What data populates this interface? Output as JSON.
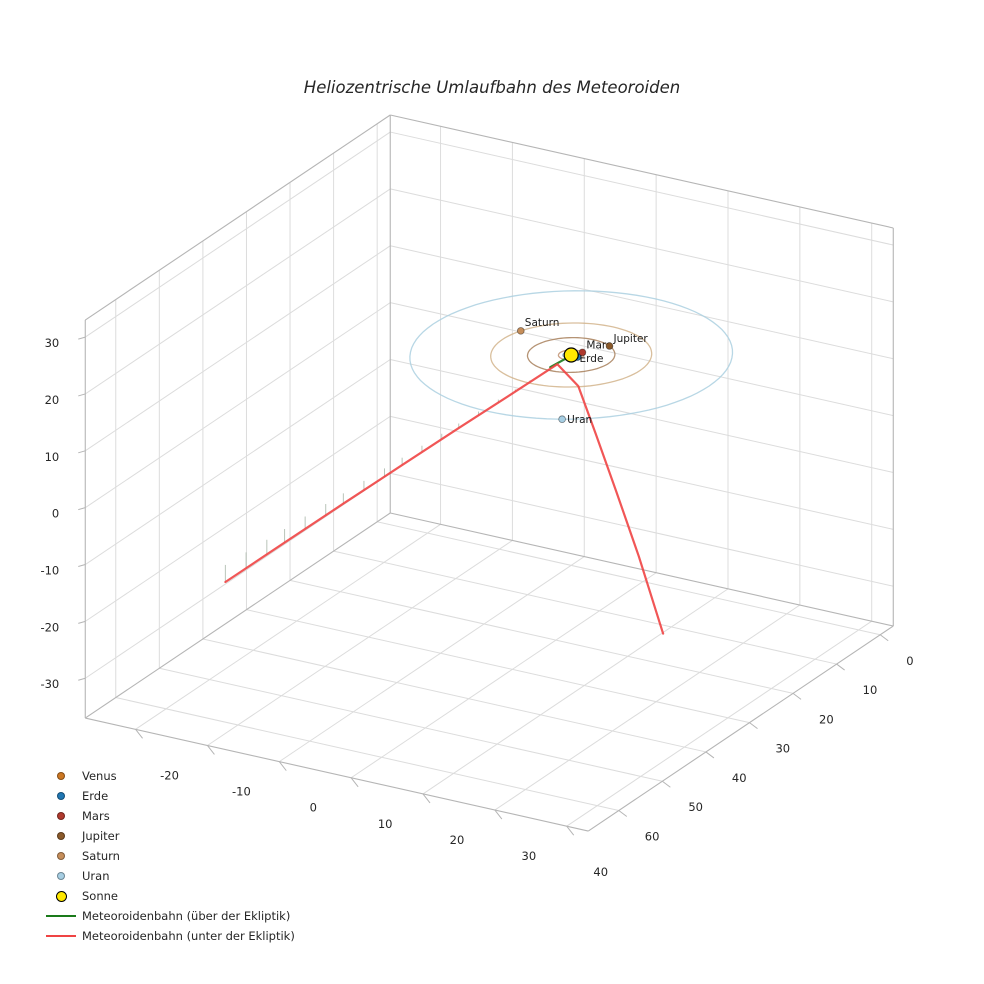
{
  "chart_data": {
    "type": "line",
    "subtype": "3d-orbits",
    "title": "Heliozentrische Umlaufbahn des Meteoroiden",
    "grid": true,
    "legend_position": "lower-left",
    "axes": {
      "x": {
        "range": [
          -27,
          43
        ],
        "ticks": [
          -20,
          -10,
          0,
          10,
          20,
          30,
          40
        ]
      },
      "y": {
        "range": [
          -3,
          67
        ],
        "ticks": [
          0,
          10,
          20,
          30,
          40,
          50,
          60
        ]
      },
      "z": {
        "range": [
          -37,
          33
        ],
        "ticks": [
          -30,
          -20,
          -10,
          0,
          10,
          20,
          30
        ]
      }
    },
    "sun": {
      "label": "Sonne",
      "color": "#ffe800",
      "edge_color": "#000000",
      "position": [
        0,
        0,
        0
      ]
    },
    "planets": [
      {
        "name": "Venus",
        "orbit_radius_au": 0.72,
        "angle_deg": 45,
        "color": "#cc7722",
        "orbit_color": "#c8924f",
        "show_label": false,
        "label_offset": [
          4,
          -4
        ]
      },
      {
        "name": "Erde",
        "orbit_radius_au": 1.0,
        "angle_deg": 10,
        "color": "#1f77b4",
        "orbit_color": "#8fb4cc",
        "show_label": true,
        "label_offset": [
          2,
          5
        ]
      },
      {
        "name": "Mars",
        "orbit_radius_au": 1.52,
        "angle_deg": 300,
        "color": "#b03a2e",
        "orbit_color": "#c09070",
        "show_label": true,
        "label_offset": [
          4,
          -4
        ]
      },
      {
        "name": "Jupiter",
        "orbit_radius_au": 5.2,
        "angle_deg": 300,
        "color": "#8b5a2b",
        "orbit_color": "#a8805c",
        "show_label": true,
        "label_offset": [
          4,
          -4
        ]
      },
      {
        "name": "Saturn",
        "orbit_radius_au": 9.58,
        "angle_deg": 200,
        "color": "#c68e5a",
        "orbit_color": "#d2b48c",
        "show_label": true,
        "label_offset": [
          4,
          -5
        ]
      },
      {
        "name": "Uran",
        "orbit_radius_au": 19.2,
        "angle_deg": 62,
        "color": "#a6cee3",
        "orbit_color": "#abd0e0",
        "show_label": true,
        "label_offset": [
          5,
          4
        ]
      }
    ],
    "trajectories": [
      {
        "name": "Meteoroidenbahn (über der Ekliptik)",
        "color": "#1a7a1a",
        "drop_ticks": false,
        "points": [
          [
            -0.2,
            4.5,
            0.12
          ],
          [
            0.0,
            1.5,
            0.04
          ],
          [
            0.4,
            0.2,
            0.01
          ]
        ]
      },
      {
        "name": "Meteoroidenbahn (unter der Ekliptik)",
        "color": "#ef4444",
        "drop_ticks": true,
        "points": [
          [
            -3.5,
            73.6,
            -3.0
          ],
          [
            -2.9,
            61,
            -2.4
          ],
          [
            -2.3,
            48.5,
            -1.8
          ],
          [
            -1.7,
            36,
            -1.3
          ],
          [
            -1.1,
            24,
            -0.8
          ],
          [
            -0.5,
            12,
            -0.4
          ],
          [
            -0.1,
            3,
            -0.1
          ],
          [
            1.6,
            1.0,
            -4.5
          ],
          [
            4.2,
            1.3,
            -12
          ],
          [
            7.2,
            1.6,
            -21
          ],
          [
            10.5,
            1.8,
            -31.5
          ],
          [
            14,
            2,
            -44
          ]
        ]
      }
    ],
    "legend": [
      {
        "label": "Venus",
        "type": "marker",
        "color": "#cc7722"
      },
      {
        "label": "Erde",
        "type": "marker",
        "color": "#1f77b4"
      },
      {
        "label": "Mars",
        "type": "marker",
        "color": "#b03a2e"
      },
      {
        "label": "Jupiter",
        "type": "marker",
        "color": "#8b5a2b"
      },
      {
        "label": "Saturn",
        "type": "marker",
        "color": "#c68e5a"
      },
      {
        "label": "Uran",
        "type": "marker",
        "color": "#a6cee3"
      },
      {
        "label": "Sonne",
        "type": "marker",
        "color": "#ffe800",
        "edge": "#000000",
        "size": 11
      },
      {
        "label": "Meteoroidenbahn (über der Ekliptik)",
        "type": "line",
        "color": "#1a7a1a"
      },
      {
        "label": "Meteoroidenbahn (unter der Ekliptik)",
        "type": "line",
        "color": "#ef4444"
      }
    ],
    "colors": {
      "grid": "#dcdcdc",
      "axis_edge": "#b5b5b5",
      "tick_label": "#262626",
      "drop_tick": "#b9c4b9"
    }
  }
}
